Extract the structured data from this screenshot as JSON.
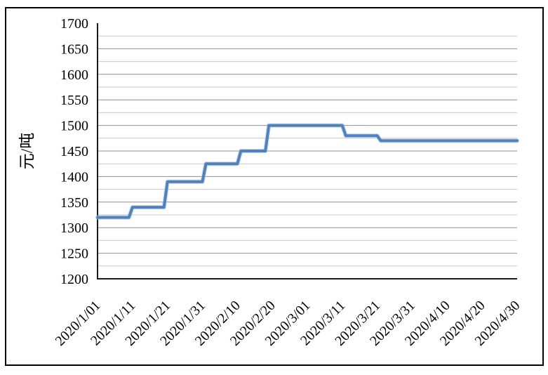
{
  "colors": {
    "line": "#4F81BD",
    "line_halo": "#A8C2DF",
    "grid_major": "#919191",
    "grid_minor": "#C9C9C9",
    "axis": "#1A1A1A",
    "border": "#000000",
    "text": "#000000"
  },
  "chart_data": {
    "type": "line",
    "title": "",
    "xlabel": "",
    "ylabel": "元/吨",
    "ylim": [
      1200,
      1700
    ],
    "y_major_step": 50,
    "y_minor_step": 25,
    "y_ticks": [
      1200,
      1250,
      1300,
      1350,
      1400,
      1450,
      1500,
      1550,
      1600,
      1650,
      1700
    ],
    "x_tick_labels": [
      "2020/1/01",
      "2020/1/11",
      "2020/1/21",
      "2020/1/31",
      "2020/2/10",
      "2020/2/20",
      "2020/3/01",
      "2020/3/11",
      "2020/3/21",
      "2020/3/31",
      "2020/4/10",
      "2020/4/20",
      "2020/4/30"
    ],
    "grid": "horizontal-only",
    "legend": "none",
    "series": [
      {
        "name": "",
        "points": [
          [
            "2020/1/01",
            1320
          ],
          [
            "2020/1/10",
            1320
          ],
          [
            "2020/1/11",
            1340
          ],
          [
            "2020/1/20",
            1340
          ],
          [
            "2020/1/21",
            1390
          ],
          [
            "2020/1/31",
            1390
          ],
          [
            "2020/2/01",
            1425
          ],
          [
            "2020/2/10",
            1425
          ],
          [
            "2020/2/11",
            1450
          ],
          [
            "2020/2/18",
            1450
          ],
          [
            "2020/2/19",
            1500
          ],
          [
            "2020/3/11",
            1500
          ],
          [
            "2020/3/12",
            1480
          ],
          [
            "2020/3/21",
            1480
          ],
          [
            "2020/3/22",
            1470
          ],
          [
            "2020/4/30",
            1470
          ]
        ]
      }
    ]
  }
}
